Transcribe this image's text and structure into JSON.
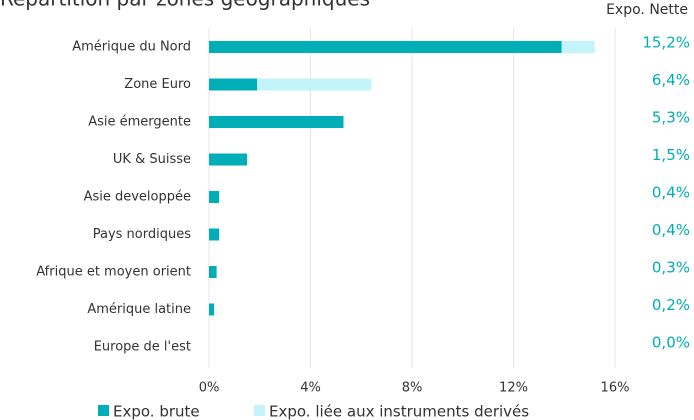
{
  "chart_data": {
    "type": "stacked-barh",
    "title": "Répartition par zones géographiques",
    "totals_header": "Expo. Nette",
    "categories": [
      "Amérique du Nord",
      "Zone Euro",
      "Asie émergente",
      "UK & Suisse",
      "Asie developpée",
      "Pays nordiques",
      "Afrique et moyen orient",
      "Amérique latine",
      "Europe de l'est"
    ],
    "series": [
      {
        "name": "Expo. brute",
        "color": "#00aeb8",
        "values": [
          13.9,
          1.9,
          5.3,
          1.5,
          0.4,
          0.4,
          0.3,
          0.2,
          0
        ]
      },
      {
        "name": "Expo. liée aux instruments derivés",
        "color": "#c2f4f9",
        "values": [
          1.3,
          4.5,
          0,
          0,
          0,
          0,
          0,
          0,
          0
        ]
      }
    ],
    "totals": [
      15.2,
      6.4,
      5.3,
      1.5,
      0.4,
      0.4,
      0.3,
      0.2,
      0
    ],
    "total_labels": [
      "15,2%",
      "6,4%",
      "5,3%",
      "1,5%",
      "0,4%",
      "0,4%",
      "0,3%",
      "0,2%",
      "0,0%"
    ],
    "xlim": [
      0,
      16
    ],
    "xticks": [
      {
        "value": 0,
        "label": "0%"
      },
      {
        "value": 4,
        "label": "4%"
      },
      {
        "value": 8,
        "label": "8%"
      },
      {
        "value": 12,
        "label": "12%"
      },
      {
        "value": 16,
        "label": "16%"
      }
    ],
    "grid": true
  }
}
